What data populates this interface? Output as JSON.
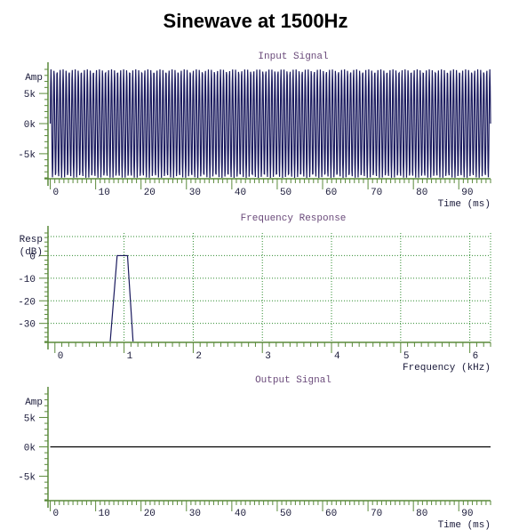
{
  "title": "Sinewave at 1500Hz",
  "colors": {
    "signal": "#1a1a5e",
    "axis": "#5a8a3a",
    "grid": "#2e8b2e",
    "title_text": "#6a4a7a",
    "tick_text": "#1a1a3a"
  },
  "chart_data": [
    {
      "type": "line",
      "title": "Input Signal",
      "ylabel": "Amp",
      "xlabel": "Time (ms)",
      "xlim": [
        -0.5,
        97
      ],
      "ylim": [
        -9000,
        9000
      ],
      "y_ticks": [
        5000,
        0,
        -5000
      ],
      "y_tick_labels": [
        "5k",
        "0k",
        "-5k"
      ],
      "x_ticks": [
        0,
        10,
        20,
        30,
        40,
        50,
        60,
        70,
        80,
        90
      ],
      "x_tick_labels": [
        "0",
        "10",
        "20",
        "30",
        "40",
        "50",
        "60",
        "70",
        "80",
        "90"
      ],
      "grid": false,
      "series": [
        {
          "frequency_hz": 1500,
          "amplitude": 9000,
          "duration_ms": 97
        }
      ]
    },
    {
      "type": "line",
      "title": "Frequency Response",
      "ylabel": "Resp\n(dB)",
      "xlabel": "Frequency (kHz)",
      "xlim": [
        -0.1,
        6.3
      ],
      "ylim": [
        -38,
        10
      ],
      "y_ticks": [
        0,
        -10,
        -20,
        -30
      ],
      "y_tick_labels": [
        "0",
        "-10",
        "-20",
        "-30"
      ],
      "x_ticks": [
        0,
        1,
        2,
        3,
        4,
        5,
        6
      ],
      "x_tick_labels": [
        "0",
        "1",
        "2",
        "3",
        "4",
        "5",
        "6"
      ],
      "grid": true,
      "series": [
        {
          "x": [
            0.8,
            0.9,
            1.05,
            1.13
          ],
          "y": [
            -38,
            0,
            0,
            -38
          ]
        }
      ]
    },
    {
      "type": "line",
      "title": "Output Signal",
      "ylabel": "Amp",
      "xlabel": "Time (ms)",
      "xlim": [
        -0.5,
        97
      ],
      "ylim": [
        -9000,
        9000
      ],
      "y_ticks": [
        5000,
        0,
        -5000
      ],
      "y_tick_labels": [
        "5k",
        "0k",
        "-5k"
      ],
      "x_ticks": [
        0,
        10,
        20,
        30,
        40,
        50,
        60,
        70,
        80,
        90
      ],
      "x_tick_labels": [
        "0",
        "10",
        "20",
        "30",
        "40",
        "50",
        "60",
        "70",
        "80",
        "90"
      ],
      "grid": false,
      "series": [
        {
          "x": [
            0,
            97
          ],
          "y": [
            0,
            0
          ]
        }
      ]
    }
  ]
}
